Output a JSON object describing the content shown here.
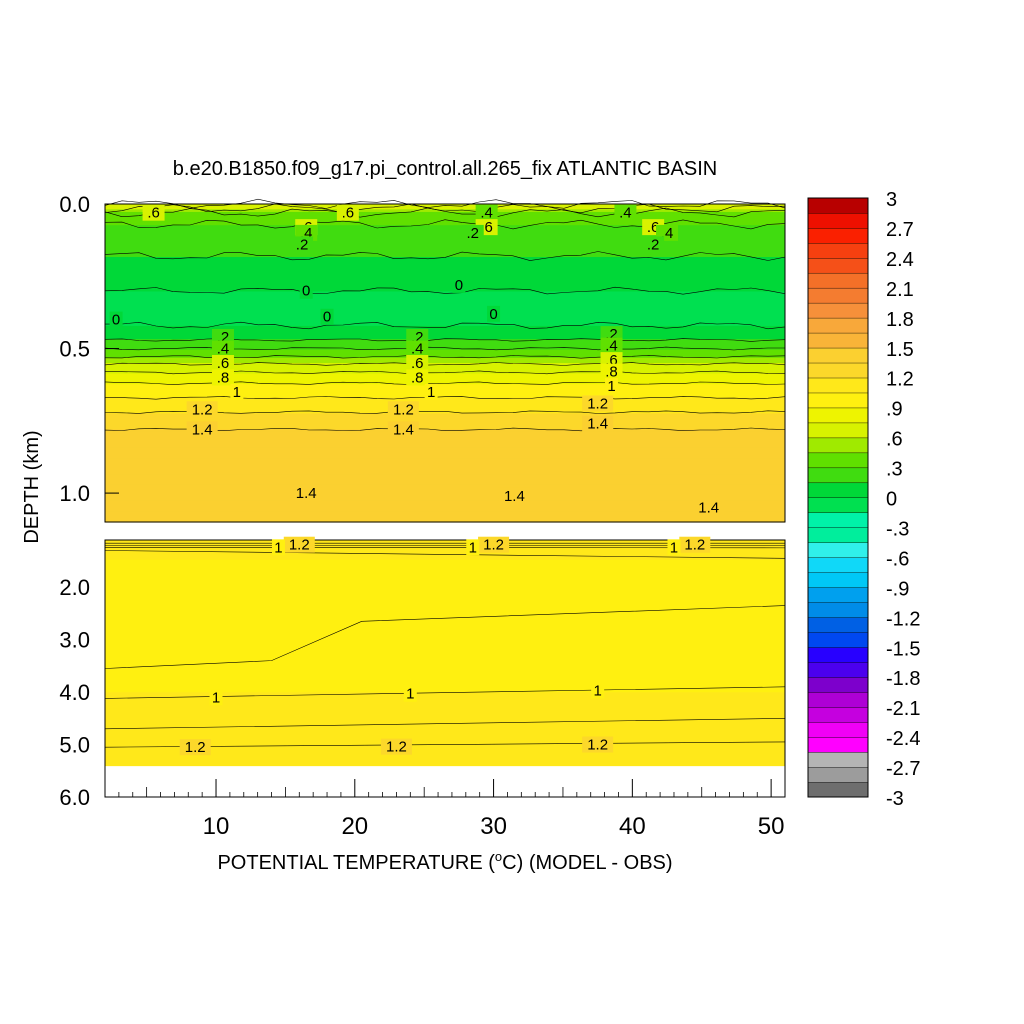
{
  "chart_data": {
    "type": "heatmap",
    "title": "b.e20.B1850.f09_g17.pi_control.all.265_fix ATLANTIC BASIN",
    "xlabel": "POTENTIAL TEMPERATURE (°C) (MODEL - OBS)",
    "xlabel_pre": "POTENTIAL TEMPERATURE (",
    "xlabel_deg": "o",
    "xlabel_post": "C) (MODEL - OBS)",
    "ylabel": "DEPTH (km)",
    "xlim": [
      2,
      51
    ],
    "x_ticks": [
      "10",
      "20",
      "30",
      "40",
      "50"
    ],
    "upper_panel": {
      "ylim": [
        0.0,
        1.1
      ],
      "y_ticks": [
        "0.0",
        "0.5",
        "1.0"
      ]
    },
    "lower_panel": {
      "ylim": [
        1.1,
        6.0
      ],
      "y_ticks": [
        "2.0",
        "3.0",
        "4.0",
        "5.0",
        "6.0"
      ],
      "data_bottom_km": 5.4
    },
    "colorbar": {
      "min": -3,
      "max": 3,
      "step": 0.15,
      "labels": [
        "3",
        "2.7",
        "2.4",
        "2.1",
        "1.8",
        "1.5",
        "1.2",
        ".9",
        ".6",
        ".3",
        "0",
        "-.3",
        "-.6",
        "-.9",
        "-1.2",
        "-1.5",
        "-1.8",
        "-2.1",
        "-2.4",
        "-2.7",
        "-3"
      ]
    },
    "profile": {
      "depth_km": [
        0.0,
        0.03,
        0.07,
        0.12,
        0.18,
        0.24,
        0.3,
        0.36,
        0.42,
        0.47,
        0.52,
        0.57,
        0.62,
        0.67,
        0.72,
        0.78,
        0.85,
        0.95,
        1.05,
        1.1
      ],
      "value": [
        0.75,
        0.45,
        0.3,
        0.2,
        0.15,
        0.1,
        0.0,
        -0.05,
        0.0,
        0.15,
        0.4,
        0.7,
        0.9,
        1.05,
        1.2,
        1.35,
        1.45,
        1.45,
        1.4,
        1.35
      ]
    },
    "lower_profile": {
      "depth_km": [
        1.1,
        1.5,
        2.0,
        3.0,
        4.0,
        5.0,
        5.4
      ],
      "value": [
        1.2,
        1.05,
        0.98,
        0.98,
        1.05,
        1.15,
        1.2
      ]
    },
    "contour_labels": {
      "upper": [
        {
          "text": ".6",
          "x": 5.5,
          "d": 0.03
        },
        {
          "text": ".6",
          "x": 19.5,
          "d": 0.03
        },
        {
          "text": ".4",
          "x": 29.5,
          "d": 0.03
        },
        {
          "text": ".4",
          "x": 39.5,
          "d": 0.03
        },
        {
          "text": ".6",
          "x": 41.5,
          "d": 0.08
        },
        {
          "text": ".4",
          "x": 42.5,
          "d": 0.1
        },
        {
          "text": ".2",
          "x": 41.5,
          "d": 0.14
        },
        {
          "text": ".6",
          "x": 16.5,
          "d": 0.08
        },
        {
          "text": ".4",
          "x": 16.5,
          "d": 0.1
        },
        {
          "text": ".2",
          "x": 16.2,
          "d": 0.14
        },
        {
          "text": ".6",
          "x": 29.5,
          "d": 0.08
        },
        {
          "text": ".2",
          "x": 28.5,
          "d": 0.1
        },
        {
          "text": "0",
          "x": 16.5,
          "d": 0.3
        },
        {
          "text": "0",
          "x": 27.5,
          "d": 0.28
        },
        {
          "text": "0",
          "x": 2.8,
          "d": 0.4
        },
        {
          "text": "0",
          "x": 18.0,
          "d": 0.39
        },
        {
          "text": "0",
          "x": 30.0,
          "d": 0.38
        },
        {
          "text": ".2",
          "x": 10.5,
          "d": 0.46
        },
        {
          "text": ".4",
          "x": 10.5,
          "d": 0.5
        },
        {
          "text": ".6",
          "x": 10.5,
          "d": 0.55
        },
        {
          "text": ".8",
          "x": 10.5,
          "d": 0.6
        },
        {
          "text": "1",
          "x": 11.5,
          "d": 0.65
        },
        {
          "text": "1.2",
          "x": 9.0,
          "d": 0.71
        },
        {
          "text": "1.4",
          "x": 9.0,
          "d": 0.78
        },
        {
          "text": ".2",
          "x": 24.5,
          "d": 0.46
        },
        {
          "text": ".4",
          "x": 24.5,
          "d": 0.5
        },
        {
          "text": ".6",
          "x": 24.5,
          "d": 0.55
        },
        {
          "text": ".8",
          "x": 24.5,
          "d": 0.6
        },
        {
          "text": "1",
          "x": 25.5,
          "d": 0.65
        },
        {
          "text": "1.2",
          "x": 23.5,
          "d": 0.71
        },
        {
          "text": "1.4",
          "x": 23.5,
          "d": 0.78
        },
        {
          "text": ".2",
          "x": 38.5,
          "d": 0.45
        },
        {
          "text": ".4",
          "x": 38.5,
          "d": 0.49
        },
        {
          "text": ".6",
          "x": 38.5,
          "d": 0.54
        },
        {
          "text": ".8",
          "x": 38.5,
          "d": 0.58
        },
        {
          "text": "1",
          "x": 38.5,
          "d": 0.63
        },
        {
          "text": "1.2",
          "x": 37.5,
          "d": 0.69
        },
        {
          "text": "1.4",
          "x": 37.5,
          "d": 0.76
        },
        {
          "text": "1.4",
          "x": 16.5,
          "d": 1.0
        },
        {
          "text": "1.4",
          "x": 31.5,
          "d": 1.01
        },
        {
          "text": "1.4",
          "x": 45.5,
          "d": 1.05
        }
      ],
      "lower": [
        {
          "text": "1.2",
          "x": 16.0,
          "d": 1.19
        },
        {
          "text": "1",
          "x": 14.5,
          "d": 1.24
        },
        {
          "text": "1.2",
          "x": 30.0,
          "d": 1.19
        },
        {
          "text": "1",
          "x": 28.5,
          "d": 1.24
        },
        {
          "text": "1.2",
          "x": 44.5,
          "d": 1.19
        },
        {
          "text": "1",
          "x": 43.0,
          "d": 1.24
        },
        {
          "text": "1",
          "x": 10.0,
          "d": 4.1
        },
        {
          "text": "1",
          "x": 24.0,
          "d": 4.03
        },
        {
          "text": "1",
          "x": 37.5,
          "d": 3.97
        },
        {
          "text": "1.2",
          "x": 8.5,
          "d": 5.05
        },
        {
          "text": "1.2",
          "x": 23.0,
          "d": 5.04
        },
        {
          "text": "1.2",
          "x": 37.5,
          "d": 5.0
        }
      ]
    }
  }
}
